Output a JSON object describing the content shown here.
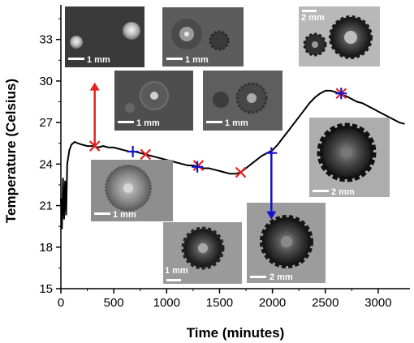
{
  "chart_data": {
    "type": "line",
    "title": "",
    "xlabel": "Time (minutes)",
    "ylabel": "Temperature (Celsius)",
    "xlim": [
      0,
      3300
    ],
    "ylim": [
      15,
      35.5
    ],
    "xticks": [
      0,
      500,
      1000,
      1500,
      2000,
      2500,
      3000
    ],
    "yticks": [
      15,
      18,
      21,
      24,
      27,
      30,
      33
    ],
    "grid": false,
    "series": [
      {
        "x": [
          0,
          10,
          20,
          30,
          40,
          50,
          60,
          80,
          100,
          130,
          160,
          200,
          250,
          300,
          350,
          400,
          450,
          500,
          550,
          600,
          650,
          700,
          750,
          800,
          850,
          900,
          950,
          1000,
          1050,
          1100,
          1150,
          1200,
          1250,
          1300,
          1350,
          1400,
          1450,
          1500,
          1550,
          1600,
          1650,
          1700,
          1750,
          1800,
          1850,
          1900,
          1950,
          2000,
          2050,
          2100,
          2150,
          2200,
          2250,
          2300,
          2350,
          2400,
          2450,
          2500,
          2550,
          2600,
          2650,
          2700,
          2750,
          2800,
          2850,
          2900,
          2950,
          3000,
          3050,
          3100,
          3150,
          3200,
          3250
        ],
        "y": [
          21.5,
          19.3,
          23.0,
          20.0,
          22.8,
          20.3,
          24.0,
          25.0,
          25.4,
          25.6,
          25.5,
          25.4,
          25.3,
          25.3,
          25.2,
          25.3,
          25.2,
          25.2,
          25.1,
          25.0,
          24.9,
          24.9,
          24.8,
          24.7,
          24.6,
          24.5,
          24.4,
          24.3,
          24.2,
          24.1,
          24.0,
          23.9,
          23.9,
          23.8,
          23.7,
          23.7,
          23.6,
          23.5,
          23.4,
          23.3,
          23.3,
          23.4,
          23.7,
          24.0,
          24.3,
          24.6,
          24.8,
          25.0,
          25.4,
          25.9,
          26.4,
          26.9,
          27.4,
          27.9,
          28.4,
          28.8,
          29.1,
          29.3,
          29.3,
          29.2,
          29.0,
          28.9,
          28.7,
          28.5,
          28.4,
          28.2,
          28.0,
          27.8,
          27.6,
          27.4,
          27.2,
          27.0,
          26.9
        ]
      }
    ],
    "markers_cross": [
      {
        "x": 320,
        "y": 25.3
      },
      {
        "x": 800,
        "y": 24.7
      },
      {
        "x": 1300,
        "y": 23.9
      },
      {
        "x": 1700,
        "y": 23.4
      },
      {
        "x": 2650,
        "y": 29.1
      }
    ],
    "markers_plus": [
      {
        "x": 680,
        "y": 24.9
      },
      {
        "x": 1290,
        "y": 23.8
      },
      {
        "x": 1990,
        "y": 24.8
      },
      {
        "x": 2650,
        "y": 29.1
      }
    ],
    "arrows": [
      {
        "x": 320,
        "from_y": 25.3,
        "to_y": 29.9,
        "color": "#e32222"
      },
      {
        "x": 1990,
        "from_y": 24.8,
        "to_y": 20.0,
        "color": "#1212cc"
      }
    ],
    "micrograph_scale_labels": [
      "1 mm",
      "1 mm",
      "2 mm",
      "1 mm",
      "1 mm",
      "1 mm",
      "1 mm",
      "2 mm",
      "2 mm"
    ],
    "colors": {
      "line": "#000000",
      "cross": "#e32222",
      "plus": "#1212cc"
    }
  }
}
